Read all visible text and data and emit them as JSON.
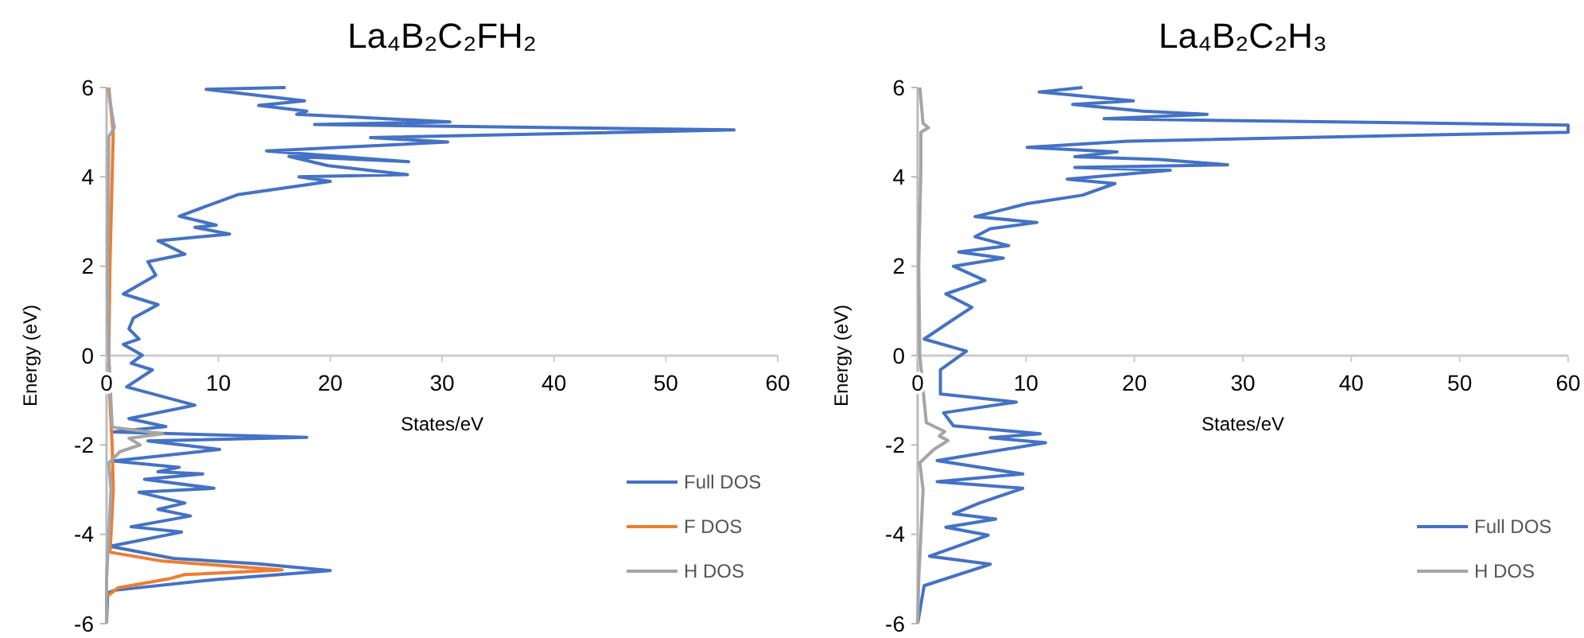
{
  "chart_data": [
    {
      "type": "line",
      "title": "La₄B₂C₂FH₂",
      "xlabel": "States/eV",
      "ylabel": "Energy (eV)",
      "xlim": [
        0,
        60
      ],
      "xticks": [
        0,
        10,
        20,
        30,
        40,
        50,
        60
      ],
      "ylim": [
        -6,
        6
      ],
      "yticks": [
        -6,
        -4,
        -2,
        0,
        2,
        4,
        6
      ],
      "grid": false,
      "legend": "bottom right",
      "series": [
        {
          "name": "Full DOS",
          "color": "#4472c4",
          "x": [
            16,
            8.9,
            17.7,
            13.6,
            17.9,
            17,
            21.2,
            30.7,
            18.6,
            56.1,
            23.6,
            30.5,
            14.3,
            27,
            16.3,
            19.8,
            26.9,
            17.2,
            20,
            11.7,
            6.5,
            9.8,
            7.9,
            11,
            4.6,
            7,
            3.7,
            4.4,
            1.5,
            4.6,
            2.4,
            2,
            2.9,
            1.5,
            3.2,
            2.2,
            4.1,
            1.8,
            7.9,
            2,
            5.3,
            0.6,
            17.9,
            3.7,
            10.1,
            0.6,
            6.5,
            4.6,
            8.6,
            3.4,
            9.6,
            2.9,
            7,
            4.6,
            7.5,
            2.2,
            6.7,
            0.3,
            6,
            13.6,
            20,
            9.8,
            0.8,
            0.1,
            0
          ],
          "values": [
            6,
            5.96,
            5.7,
            5.6,
            5.47,
            5.4,
            5.35,
            5.23,
            5.17,
            5.05,
            4.88,
            4.78,
            4.58,
            4.34,
            4.46,
            4.25,
            4.05,
            4,
            3.9,
            3.6,
            3.12,
            2.92,
            2.87,
            2.72,
            2.57,
            2.27,
            2.1,
            1.8,
            1.38,
            1.14,
            0.84,
            0.6,
            0.37,
            0.25,
            0.01,
            -0.17,
            -0.32,
            -0.7,
            -1.11,
            -1.41,
            -1.59,
            -1.71,
            -1.83,
            -1.91,
            -2.1,
            -2.36,
            -2.5,
            -2.6,
            -2.65,
            -2.77,
            -2.97,
            -3.06,
            -3.3,
            -3.44,
            -3.59,
            -3.83,
            -3.95,
            -4.27,
            -4.54,
            -4.66,
            -4.81,
            -5.01,
            -5.25,
            -5.31,
            -6
          ]
        },
        {
          "name": "F DOS",
          "color": "#ed7d31",
          "x": [
            0.2,
            0.6,
            0.5,
            0.3,
            0.2,
            0.3,
            0.5,
            0.6,
            0.4,
            0.3,
            5,
            15.7,
            7,
            5.5,
            1,
            0,
            0
          ],
          "values": [
            6,
            5,
            4,
            2,
            0,
            -1,
            -2,
            -3,
            -4,
            -4.4,
            -4.6,
            -4.8,
            -4.9,
            -5,
            -5.2,
            -5.4,
            -6
          ]
        },
        {
          "name": "H DOS",
          "color": "#a5a5a5",
          "x": [
            0.1,
            0.7,
            0.2,
            0.1,
            0.2,
            0.5,
            5,
            2,
            3,
            1.2,
            0.2,
            0.4,
            0.2,
            0,
            0
          ],
          "values": [
            6,
            5.1,
            4.9,
            2,
            0,
            -1.6,
            -1.75,
            -1.85,
            -2,
            -2.15,
            -2.4,
            -3,
            -4,
            -5,
            -6
          ]
        }
      ]
    },
    {
      "type": "line",
      "title": "La₄B₂C₂H₃",
      "xlabel": "States/eV",
      "ylabel": "Energy (eV)",
      "xlim": [
        0,
        60
      ],
      "xticks": [
        0,
        10,
        20,
        30,
        40,
        50,
        60
      ],
      "ylim": [
        -6,
        6
      ],
      "yticks": [
        -6,
        -4,
        -2,
        0,
        2,
        4,
        6
      ],
      "grid": false,
      "legend": "bottom right",
      "series": [
        {
          "name": "Full DOS",
          "color": "#4472c4",
          "x": [
            15.2,
            11.2,
            19.9,
            14.3,
            20.8,
            26.7,
            17.2,
            60,
            60,
            19.4,
            10.1,
            18.4,
            14.5,
            22.3,
            28.6,
            14.5,
            23.3,
            13.8,
            18.2,
            15.2,
            10.1,
            5.3,
            11,
            6.7,
            5.3,
            8.4,
            3.8,
            7.9,
            3.3,
            6.2,
            2.6,
            5,
            3.3,
            0.6,
            4.5,
            2.1,
            2.1,
            9.1,
            2.4,
            3.3,
            11.3,
            6.7,
            11.8,
            1.8,
            9.7,
            1.8,
            9.7,
            5.7,
            3.3,
            7.2,
            2.6,
            6.5,
            1.1,
            6.7,
            0.6,
            0
          ],
          "values": [
            6,
            5.9,
            5.7,
            5.62,
            5.47,
            5.4,
            5.3,
            5.16,
            5,
            4.8,
            4.66,
            4.56,
            4.45,
            4.39,
            4.27,
            4.21,
            4.15,
            3.95,
            3.85,
            3.59,
            3.4,
            3.11,
            2.98,
            2.84,
            2.66,
            2.46,
            2.32,
            2.18,
            2,
            1.68,
            1.38,
            1.08,
            0.81,
            0.37,
            0.1,
            -0.32,
            -0.86,
            -1.04,
            -1.28,
            -1.57,
            -1.75,
            -1.84,
            -1.95,
            -2.35,
            -2.65,
            -2.82,
            -2.97,
            -3.3,
            -3.54,
            -3.66,
            -3.84,
            -4.02,
            -4.49,
            -4.67,
            -5.15,
            -6
          ]
        },
        {
          "name": "H DOS",
          "color": "#a5a5a5",
          "x": [
            0.2,
            0.5,
            1,
            0.3,
            0.3,
            0.1,
            0.2,
            0.8,
            2.5,
            2,
            2.8,
            1.5,
            0.2,
            0.5,
            0.3,
            0.1,
            0
          ],
          "values": [
            6,
            5.2,
            5.1,
            5,
            4.2,
            2,
            0,
            -1.5,
            -1.7,
            -1.8,
            -1.9,
            -2.1,
            -2.4,
            -3,
            -4,
            -5,
            -6
          ]
        }
      ]
    }
  ]
}
